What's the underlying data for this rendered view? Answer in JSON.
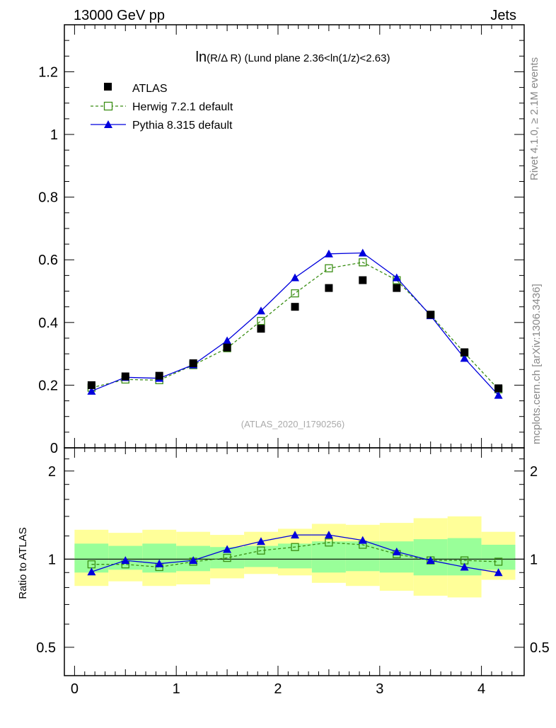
{
  "header": {
    "left": "13000 GeV pp",
    "right": "Jets"
  },
  "side_labels": {
    "rivet": "Rivet 4.1.0, ≥ 2.1M events",
    "mcplots": "mcplots.cern.ch [arXiv:1306.3436]"
  },
  "watermark": "(ATLAS_2020_I1790256)",
  "colors": {
    "data": "#000000",
    "herwig": "#3a8e14",
    "pythia": "#0000dd",
    "band_outer": "#ffff99",
    "band_inner": "#99ff99"
  },
  "chart_data": [
    {
      "type": "line",
      "title": "ln(R/Δ R) (Lund plane 2.36<ln(1/z)<2.63)",
      "title_parts": {
        "ln": "ln",
        "rest": "(R/Δ R) (Lund plane 2.36<ln(1/z)<2.63)"
      },
      "xlabel": "",
      "ylabel": "",
      "xlim": [
        -0.1,
        4.42
      ],
      "ylim": [
        0,
        1.35
      ],
      "x_ticks": [
        0,
        1,
        2,
        3,
        4
      ],
      "x_tick_labels": [
        "0",
        "1",
        "2",
        "3",
        "4"
      ],
      "y_ticks": [
        0,
        0.2,
        0.4,
        0.6,
        0.8,
        1,
        1.2
      ],
      "y_tick_labels": [
        "0",
        "0.2",
        "0.4",
        "0.6",
        "0.8",
        "1",
        "1.2"
      ],
      "legend": {
        "placement": "top-left",
        "entries": [
          "ATLAS",
          "Herwig 7.2.1 default",
          "Pythia 8.315 default"
        ]
      },
      "x": [
        0.167,
        0.5,
        0.833,
        1.167,
        1.5,
        1.833,
        2.167,
        2.5,
        2.833,
        3.167,
        3.5,
        3.833,
        4.167
      ],
      "series": [
        {
          "name": "ATLAS",
          "style": "marker-square",
          "values": [
            0.2,
            0.228,
            0.23,
            0.27,
            0.32,
            0.38,
            0.45,
            0.51,
            0.535,
            0.51,
            0.425,
            0.305,
            0.19
          ]
        },
        {
          "name": "Herwig 7.2.1 default",
          "style": "dashed-open-square",
          "values": [
            0.192,
            0.218,
            0.216,
            0.264,
            0.318,
            0.405,
            0.493,
            0.573,
            0.592,
            0.535,
            0.424,
            0.303,
            0.187
          ]
        },
        {
          "name": "Pythia 8.315 default",
          "style": "solid-triangle",
          "values": [
            0.181,
            0.225,
            0.222,
            0.265,
            0.342,
            0.437,
            0.543,
            0.619,
            0.622,
            0.543,
            0.422,
            0.286,
            0.168
          ]
        }
      ]
    },
    {
      "type": "line",
      "title": "",
      "xlabel": "",
      "ylabel": "Ratio to ATLAS",
      "xlim": [
        -0.1,
        4.42
      ],
      "ylim": [
        0.4,
        2.4
      ],
      "y_scale": "log",
      "y_tick_labels_left": [
        {
          "value": 0.5,
          "label": "0.5"
        },
        {
          "value": 1,
          "label": "1"
        },
        {
          "value": 2,
          "label": "2"
        }
      ],
      "y_tick_labels_right": [
        {
          "value": 0.5,
          "label": "0.5"
        },
        {
          "value": 1,
          "label": "1"
        },
        {
          "value": 2,
          "label": "2"
        }
      ],
      "x_ticks": [
        0,
        1,
        2,
        3,
        4
      ],
      "x_tick_labels": [
        "0",
        "1",
        "2",
        "3",
        "4"
      ],
      "bin_edges": [
        0,
        0.333,
        0.667,
        1.0,
        1.333,
        1.667,
        2.0,
        2.333,
        2.667,
        3.0,
        3.333,
        3.667,
        4.0,
        4.333
      ],
      "band_outer": {
        "lo": [
          0.81,
          0.84,
          0.81,
          0.82,
          0.86,
          0.89,
          0.88,
          0.83,
          0.81,
          0.78,
          0.75,
          0.74,
          0.85
        ],
        "hi": [
          1.26,
          1.23,
          1.26,
          1.24,
          1.21,
          1.24,
          1.27,
          1.32,
          1.31,
          1.33,
          1.38,
          1.4,
          1.24
        ]
      },
      "band_inner": {
        "lo": [
          0.9,
          0.92,
          0.9,
          0.91,
          0.93,
          0.94,
          0.93,
          0.9,
          0.91,
          0.9,
          0.88,
          0.88,
          0.92
        ],
        "hi": [
          1.13,
          1.11,
          1.13,
          1.11,
          1.1,
          1.11,
          1.13,
          1.15,
          1.15,
          1.15,
          1.17,
          1.18,
          1.12
        ]
      },
      "x": [
        0.167,
        0.5,
        0.833,
        1.167,
        1.5,
        1.833,
        2.167,
        2.5,
        2.833,
        3.167,
        3.5,
        3.833,
        4.167
      ],
      "series": [
        {
          "name": "Herwig 7.2.1 default",
          "style": "dashed-open-square",
          "values": [
            0.96,
            0.96,
            0.94,
            0.98,
            1.01,
            1.07,
            1.1,
            1.14,
            1.12,
            1.04,
            0.99,
            0.99,
            0.98
          ]
        },
        {
          "name": "Pythia 8.315 default",
          "style": "solid-triangle",
          "values": [
            0.905,
            0.99,
            0.965,
            0.99,
            1.08,
            1.15,
            1.21,
            1.21,
            1.16,
            1.06,
            0.99,
            0.94,
            0.9
          ]
        }
      ]
    }
  ]
}
